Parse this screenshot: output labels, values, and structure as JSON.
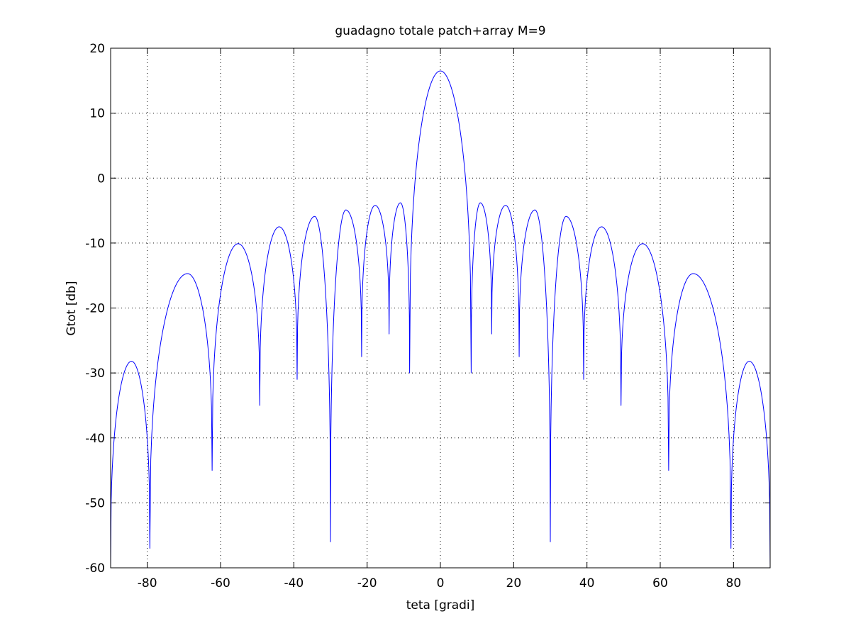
{
  "chart_data": {
    "type": "line",
    "title": "guadagno totale patch+array M=9",
    "xlabel": "teta [gradi]",
    "ylabel": "Gtot [db]",
    "xlim": [
      -90,
      90
    ],
    "ylim": [
      -60,
      20
    ],
    "xticks": [
      -80,
      -60,
      -40,
      -20,
      0,
      20,
      40,
      60,
      80
    ],
    "yticks": [
      -60,
      -50,
      -40,
      -30,
      -20,
      -10,
      0,
      10,
      20
    ],
    "grid": true,
    "legend": "none",
    "series": [
      {
        "color": "#0000ff",
        "lobe_peaks": [
          {
            "x": 0,
            "y": 16.5
          },
          {
            "x": 10.9,
            "y": -3.8
          },
          {
            "x": -10.9,
            "y": -3.8
          },
          {
            "x": 17.8,
            "y": -4.2
          },
          {
            "x": -17.8,
            "y": -4.2
          },
          {
            "x": 25.8,
            "y": -4.9
          },
          {
            "x": -25.8,
            "y": -4.9
          },
          {
            "x": 34.3,
            "y": -5.9
          },
          {
            "x": -34.3,
            "y": -5.9
          },
          {
            "x": 44.0,
            "y": -7.5
          },
          {
            "x": -44.0,
            "y": -7.5
          },
          {
            "x": 55.2,
            "y": -10.1
          },
          {
            "x": -55.2,
            "y": -10.1
          },
          {
            "x": 69.0,
            "y": -14.7
          },
          {
            "x": -69.0,
            "y": -14.7
          },
          {
            "x": 84.3,
            "y": -28.2
          },
          {
            "x": -84.3,
            "y": -28.2
          }
        ],
        "nulls": [
          {
            "x": 8.4,
            "y": -30
          },
          {
            "x": -8.4,
            "y": -30
          },
          {
            "x": 14.0,
            "y": -24
          },
          {
            "x": -14.0,
            "y": -24
          },
          {
            "x": 21.5,
            "y": -27.5
          },
          {
            "x": -21.5,
            "y": -27.5
          },
          {
            "x": 30.0,
            "y": -56
          },
          {
            "x": -30.0,
            "y": -56
          },
          {
            "x": 39.1,
            "y": -31
          },
          {
            "x": -39.1,
            "y": -31
          },
          {
            "x": 49.3,
            "y": -35
          },
          {
            "x": -49.3,
            "y": -35
          },
          {
            "x": 62.3,
            "y": -45
          },
          {
            "x": -62.3,
            "y": -45
          },
          {
            "x": 79.3,
            "y": -57
          },
          {
            "x": -79.3,
            "y": -57
          }
        ],
        "edges": [
          {
            "x": -90,
            "y": -60
          },
          {
            "x": 90,
            "y": -60
          }
        ]
      }
    ]
  }
}
